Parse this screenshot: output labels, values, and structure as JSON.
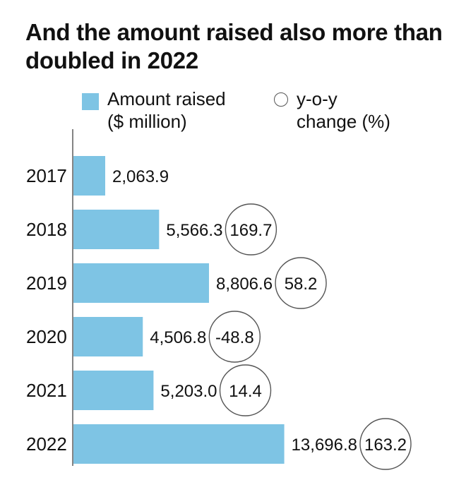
{
  "title": "And the amount raised also more than doubled in 2022",
  "legend": {
    "amount_line1": "Amount raised",
    "amount_line2": "($ million)",
    "yoy_line1": "y-o-y",
    "yoy_line2": "change (%)"
  },
  "colors": {
    "bar": "#7ec4e4",
    "circle": "#555555",
    "axis": "#333333"
  },
  "chart_data": {
    "type": "bar",
    "orientation": "horizontal",
    "categories": [
      "2017",
      "2018",
      "2019",
      "2020",
      "2021",
      "2022"
    ],
    "series": [
      {
        "name": "Amount raised ($ million)",
        "values": [
          2063.9,
          5566.3,
          8806.6,
          4506.8,
          5203.0,
          13696.8
        ],
        "labels": [
          "2,063.9",
          "5,566.3",
          "8,806.6",
          "4,506.8",
          "5,203.0",
          "13,696.8"
        ]
      },
      {
        "name": "y-o-y change (%)",
        "values": [
          null,
          169.7,
          58.2,
          -48.8,
          14.4,
          163.2
        ],
        "labels": [
          "",
          "169.7",
          "58.2",
          "-48.8",
          "14.4",
          "163.2"
        ]
      }
    ],
    "xlim": [
      0,
      14000
    ],
    "grid": false
  }
}
